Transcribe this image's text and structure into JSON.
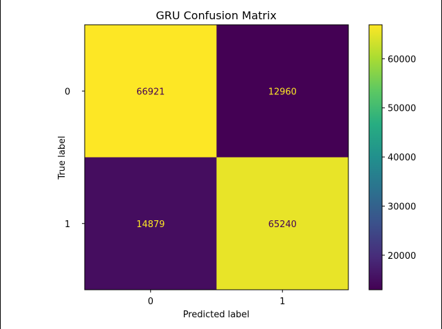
{
  "chart_data": {
    "type": "heatmap",
    "title": "GRU Confusion Matrix",
    "xlabel": "Predicted label",
    "ylabel": "True label",
    "x_categories": [
      "0",
      "1"
    ],
    "y_categories": [
      "0",
      "1"
    ],
    "matrix": [
      [
        66921,
        12960
      ],
      [
        14879,
        65240
      ]
    ],
    "cell_labels": [
      [
        "66921",
        "12960"
      ],
      [
        "14879",
        "65240"
      ]
    ],
    "colormap": "viridis",
    "colorbar": {
      "range": [
        12960,
        66921
      ],
      "ticks": [
        20000,
        30000,
        40000,
        50000,
        60000
      ],
      "tick_labels": [
        "20000",
        "30000",
        "40000",
        "50000",
        "60000"
      ]
    },
    "label_colors": {
      "on_dark": "#fde725",
      "on_light": "#440154"
    },
    "grid": false
  }
}
